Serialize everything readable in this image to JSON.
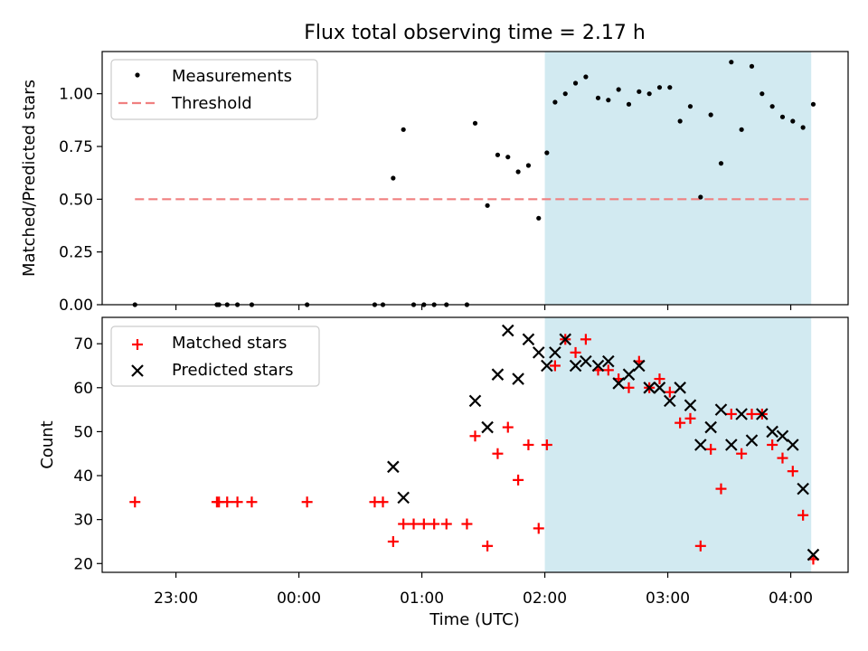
{
  "figure": {
    "title": "Flux total observing time = 2.17 h",
    "xlabel": "Time (UTC)"
  },
  "chart_data": [
    {
      "type": "scatter",
      "panel": "top",
      "ylabel": "Matched/Predicted stars",
      "ylim": [
        0,
        1.2
      ],
      "yticks": [
        "0.00",
        "0.25",
        "0.50",
        "0.75",
        "1.00"
      ],
      "xticks": [
        "23:00",
        "00:00",
        "01:00",
        "02:00",
        "03:00",
        "04:00"
      ],
      "x_unit": "UTC time (same day, times after 00:00 follow the 23:00 hour)",
      "legend_position": "upper-left",
      "shaded_span": {
        "x": [
          "02:00",
          "04:10"
        ],
        "color": "#add8e6"
      },
      "series": [
        {
          "name": "Measurements",
          "marker": "dot",
          "color": "#000000",
          "points": [
            [
              "22:40",
              0.0
            ],
            [
              "23:20",
              0.0
            ],
            [
              "23:21",
              0.0
            ],
            [
              "23:25",
              0.0
            ],
            [
              "23:30",
              0.0
            ],
            [
              "23:37",
              0.0
            ],
            [
              "00:04",
              0.0
            ],
            [
              "00:37",
              0.0
            ],
            [
              "00:41",
              0.0
            ],
            [
              "00:46",
              0.6
            ],
            [
              "00:51",
              0.83
            ],
            [
              "00:56",
              0.0
            ],
            [
              "01:01",
              0.0
            ],
            [
              "01:06",
              0.0
            ],
            [
              "01:12",
              0.0
            ],
            [
              "01:22",
              0.0
            ],
            [
              "01:26",
              0.86
            ],
            [
              "01:32",
              0.47
            ],
            [
              "01:37",
              0.71
            ],
            [
              "01:42",
              0.7
            ],
            [
              "01:47",
              0.63
            ],
            [
              "01:52",
              0.66
            ],
            [
              "01:57",
              0.41
            ],
            [
              "02:01",
              0.72
            ],
            [
              "02:05",
              0.96
            ],
            [
              "02:10",
              1.0
            ],
            [
              "02:15",
              1.05
            ],
            [
              "02:20",
              1.08
            ],
            [
              "02:26",
              0.98
            ],
            [
              "02:31",
              0.97
            ],
            [
              "02:36",
              1.02
            ],
            [
              "02:41",
              0.95
            ],
            [
              "02:46",
              1.01
            ],
            [
              "02:51",
              1.0
            ],
            [
              "02:56",
              1.03
            ],
            [
              "03:01",
              1.03
            ],
            [
              "03:06",
              0.87
            ],
            [
              "03:11",
              0.94
            ],
            [
              "03:16",
              0.51
            ],
            [
              "03:21",
              0.9
            ],
            [
              "03:26",
              0.67
            ],
            [
              "03:31",
              1.15
            ],
            [
              "03:36",
              0.83
            ],
            [
              "03:41",
              1.13
            ],
            [
              "03:46",
              1.0
            ],
            [
              "03:51",
              0.94
            ],
            [
              "03:56",
              0.89
            ],
            [
              "04:01",
              0.87
            ],
            [
              "04:06",
              0.84
            ],
            [
              "04:11",
              0.95
            ]
          ]
        },
        {
          "name": "Threshold",
          "line_style": "dashed",
          "color": "#f08080",
          "points": [
            [
              "22:40",
              0.5
            ],
            [
              "04:10",
              0.5
            ]
          ]
        }
      ]
    },
    {
      "type": "scatter",
      "panel": "bottom",
      "ylabel": "Count",
      "ylim": [
        18,
        76
      ],
      "yticks": [
        "20",
        "30",
        "40",
        "50",
        "60",
        "70"
      ],
      "xticks": [
        "23:00",
        "00:00",
        "01:00",
        "02:00",
        "03:00",
        "04:00"
      ],
      "legend_position": "upper-left",
      "shaded_span": {
        "x": [
          "02:00",
          "04:10"
        ],
        "color": "#add8e6"
      },
      "series": [
        {
          "name": "Matched stars",
          "marker": "plus",
          "color": "#ff0000",
          "points": [
            [
              "22:40",
              34
            ],
            [
              "23:20",
              34
            ],
            [
              "23:21",
              34
            ],
            [
              "23:25",
              34
            ],
            [
              "23:30",
              34
            ],
            [
              "23:37",
              34
            ],
            [
              "00:04",
              34
            ],
            [
              "00:37",
              34
            ],
            [
              "00:41",
              34
            ],
            [
              "00:46",
              25
            ],
            [
              "00:51",
              29
            ],
            [
              "00:56",
              29
            ],
            [
              "01:01",
              29
            ],
            [
              "01:06",
              29
            ],
            [
              "01:12",
              29
            ],
            [
              "01:22",
              29
            ],
            [
              "01:26",
              49
            ],
            [
              "01:32",
              24
            ],
            [
              "01:37",
              45
            ],
            [
              "01:42",
              51
            ],
            [
              "01:47",
              39
            ],
            [
              "01:52",
              47
            ],
            [
              "01:57",
              28
            ],
            [
              "02:01",
              47
            ],
            [
              "02:05",
              65
            ],
            [
              "02:10",
              71
            ],
            [
              "02:15",
              68
            ],
            [
              "02:20",
              71
            ],
            [
              "02:26",
              64
            ],
            [
              "02:31",
              64
            ],
            [
              "02:36",
              62
            ],
            [
              "02:41",
              60
            ],
            [
              "02:46",
              66
            ],
            [
              "02:51",
              60
            ],
            [
              "02:56",
              62
            ],
            [
              "03:01",
              59
            ],
            [
              "03:06",
              52
            ],
            [
              "03:11",
              53
            ],
            [
              "03:16",
              24
            ],
            [
              "03:21",
              46
            ],
            [
              "03:26",
              37
            ],
            [
              "03:31",
              54
            ],
            [
              "03:36",
              45
            ],
            [
              "03:41",
              54
            ],
            [
              "03:46",
              54
            ],
            [
              "03:51",
              47
            ],
            [
              "03:56",
              44
            ],
            [
              "04:01",
              41
            ],
            [
              "04:06",
              31
            ],
            [
              "04:11",
              21
            ]
          ]
        },
        {
          "name": "Predicted stars",
          "marker": "x",
          "color": "#000000",
          "points": [
            [
              "00:46",
              42
            ],
            [
              "00:51",
              35
            ],
            [
              "01:26",
              57
            ],
            [
              "01:32",
              51
            ],
            [
              "01:37",
              63
            ],
            [
              "01:42",
              73
            ],
            [
              "01:47",
              62
            ],
            [
              "01:52",
              71
            ],
            [
              "01:57",
              68
            ],
            [
              "02:01",
              65
            ],
            [
              "02:05",
              68
            ],
            [
              "02:10",
              71
            ],
            [
              "02:15",
              65
            ],
            [
              "02:20",
              66
            ],
            [
              "02:26",
              65
            ],
            [
              "02:31",
              66
            ],
            [
              "02:36",
              61
            ],
            [
              "02:41",
              63
            ],
            [
              "02:46",
              65
            ],
            [
              "02:51",
              60
            ],
            [
              "02:56",
              60
            ],
            [
              "03:01",
              57
            ],
            [
              "03:06",
              60
            ],
            [
              "03:11",
              56
            ],
            [
              "03:16",
              47
            ],
            [
              "03:21",
              51
            ],
            [
              "03:26",
              55
            ],
            [
              "03:31",
              47
            ],
            [
              "03:36",
              54
            ],
            [
              "03:41",
              48
            ],
            [
              "03:46",
              54
            ],
            [
              "03:51",
              50
            ],
            [
              "03:56",
              49
            ],
            [
              "04:01",
              47
            ],
            [
              "04:06",
              37
            ],
            [
              "04:11",
              22
            ]
          ]
        }
      ]
    }
  ]
}
